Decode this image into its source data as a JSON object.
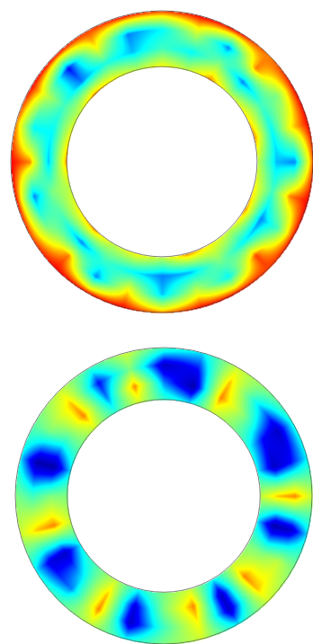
{
  "chart_data": [
    {
      "type": "heatmap",
      "tick_labels": false,
      "angles": [
        0,
        15,
        30,
        45,
        60,
        75,
        90,
        105,
        120,
        135,
        150,
        165,
        180,
        195,
        210,
        225,
        240,
        255,
        270,
        285,
        300,
        315,
        330,
        345
      ],
      "cells": [
        [
          0.8,
          0.7,
          0.9,
          0.7,
          0.8,
          0.9,
          0.7,
          0.8,
          0.9,
          0.7,
          0.8,
          0.9,
          0.7,
          0.8,
          0.7,
          0.9,
          0.8,
          0.7,
          0.9,
          0.8,
          0.7,
          0.9,
          0.8,
          0.7
        ],
        [
          0.5,
          0.4,
          0.6,
          0.3,
          0.5,
          0.4,
          0.35,
          0.5,
          0.3,
          0.4,
          0.6,
          0.35,
          0.3,
          0.4,
          0.5,
          0.3,
          0.5,
          0.6,
          0.35,
          0.4,
          0.5,
          0.3,
          0.45,
          0.35
        ],
        [
          0.4,
          0.7,
          0.3,
          0.9,
          0.6,
          0.8,
          0.3,
          0.9,
          0.5,
          0.95,
          0.4,
          0.7,
          0.35,
          0.8,
          0.3,
          0.9,
          0.6,
          0.3,
          0.9,
          0.4,
          0.7,
          0.2,
          0.8,
          0.3
        ],
        [
          0.95,
          1,
          1,
          0.9,
          1,
          1,
          0.95,
          1,
          1,
          0.95,
          1,
          1,
          0.9,
          1,
          1,
          1,
          0.95,
          1,
          1,
          0.9,
          1,
          1,
          0.95,
          1
        ]
      ],
      "color_range": [
        0,
        1
      ]
    },
    {
      "type": "heatmap",
      "tick_labels": false,
      "angles": [
        0,
        15,
        30,
        45,
        60,
        75,
        90,
        105,
        120,
        135,
        150,
        165,
        180,
        195,
        210,
        225,
        240,
        255,
        270,
        285,
        300,
        315,
        330,
        345
      ],
      "cells": [
        [
          0.48,
          0.38,
          0.72,
          0.6,
          0.44,
          0.4,
          0.7,
          0.38,
          0.6,
          0.72,
          0.4,
          0.72,
          0.6,
          0.42,
          0.7,
          0.52,
          0.4,
          0.72,
          0.6,
          0.38,
          0.56,
          0.72,
          0.48,
          0.72
        ],
        [
          0.3,
          0.05,
          0.9,
          0.6,
          0.2,
          0.1,
          0.85,
          0.05,
          0.6,
          0.9,
          0.1,
          0.9,
          0.6,
          0.15,
          0.85,
          0.4,
          0.1,
          0.9,
          0.6,
          0.05,
          0.5,
          0.9,
          0.3,
          0.9
        ],
        [
          0.1,
          0.2,
          0.85,
          0.4,
          0.1,
          0.2,
          0.9,
          0.1,
          0.7,
          0.85,
          0.1,
          0.8,
          0.5,
          0.1,
          0.9,
          0.3,
          0.15,
          0.85,
          0.5,
          0.05,
          0.6,
          0.85,
          0.2,
          0.6
        ],
        [
          0.48,
          0.38,
          0.72,
          0.6,
          0.44,
          0.4,
          0.7,
          0.38,
          0.6,
          0.72,
          0.4,
          0.72,
          0.6,
          0.42,
          0.7,
          0.52,
          0.4,
          0.72,
          0.6,
          0.38,
          0.56,
          0.72,
          0.48,
          0.72
        ]
      ],
      "color_range": [
        0,
        1
      ]
    }
  ]
}
